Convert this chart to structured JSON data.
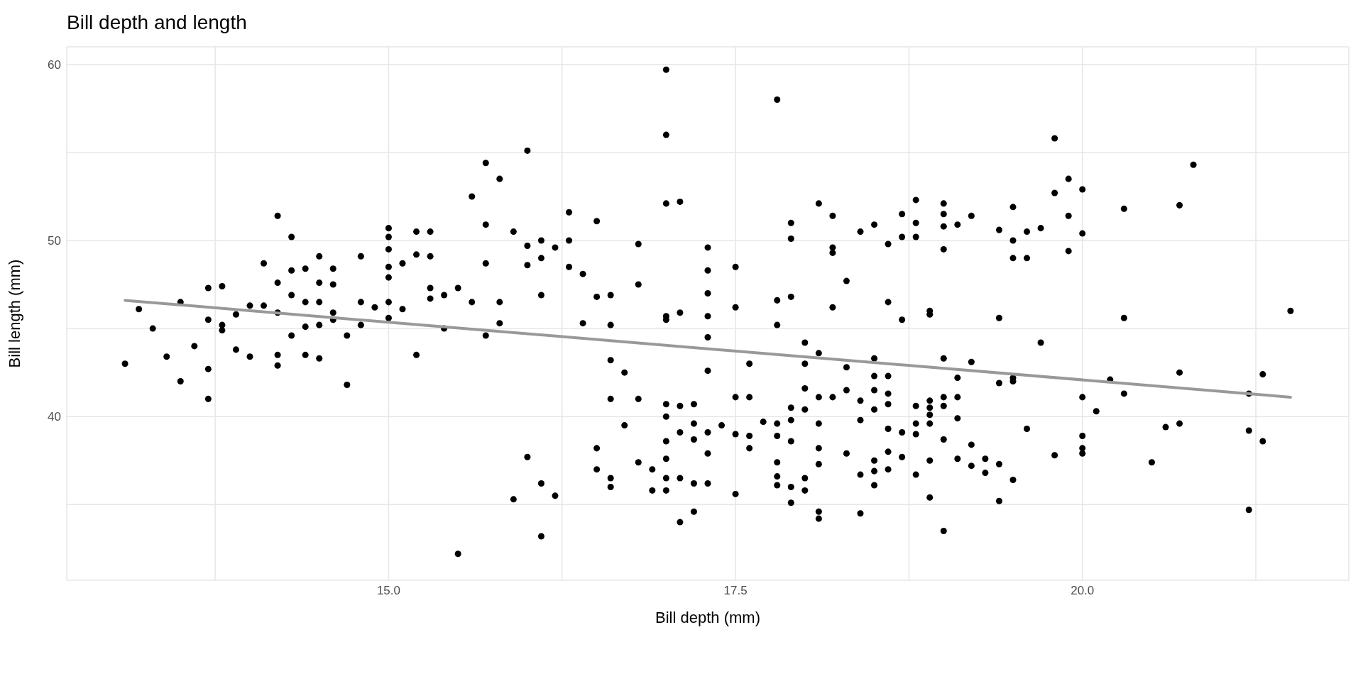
{
  "chart_data": {
    "type": "scatter",
    "title": "Bill depth and length",
    "xlabel": "Bill depth (mm)",
    "ylabel": "Bill length (mm)",
    "xlim": [
      12.68,
      21.92
    ],
    "xticks": [
      {
        "value": 13.75,
        "label": null
      },
      {
        "value": 15,
        "label": "15.0"
      },
      {
        "value": 16.25,
        "label": null
      },
      {
        "value": 17.5,
        "label": "17.5"
      },
      {
        "value": 18.75,
        "label": null
      },
      {
        "value": 20,
        "label": "20.0"
      },
      {
        "value": 21.25,
        "label": null
      }
    ],
    "ylim": [
      30.7,
      61
    ],
    "yticks": [
      {
        "value": 35,
        "label": null
      },
      40,
      {
        "value": 45,
        "label": null
      },
      50,
      {
        "value": 55,
        "label": null
      },
      60
    ],
    "grid": true,
    "marker": "circle",
    "line_style": "solid",
    "series": [
      {
        "color": "#000000",
        "x": [
          13.1,
          13.2,
          13.3,
          13.4,
          13.5,
          13.5,
          13.6,
          13.7,
          13.7,
          13.7,
          13.7,
          13.8,
          13.8,
          13.8,
          13.9,
          13.9,
          14.0,
          14.0,
          14.1,
          14.1,
          14.2,
          14.2,
          14.2,
          14.2,
          14.2,
          14.3,
          14.3,
          14.3,
          14.3,
          14.4,
          14.4,
          14.4,
          14.4,
          14.5,
          14.5,
          14.5,
          14.5,
          14.5,
          14.6,
          14.6,
          14.6,
          14.6,
          14.7,
          14.7,
          14.8,
          14.8,
          14.8,
          14.9,
          15.0,
          15.0,
          15.0,
          15.0,
          15.0,
          15.0,
          15.0,
          15.1,
          15.1,
          15.2,
          15.2,
          15.2,
          15.3,
          15.3,
          15.3,
          15.3,
          15.4,
          15.4,
          15.5,
          15.5,
          15.6,
          15.6,
          15.7,
          15.7,
          15.7,
          15.7,
          15.8,
          15.8,
          15.8,
          15.9,
          15.9,
          16.0,
          16.0,
          16.0,
          16.0,
          16.1,
          16.1,
          16.1,
          16.1,
          16.1,
          16.2,
          16.2,
          16.3,
          16.3,
          16.3,
          16.4,
          16.4,
          16.5,
          16.5,
          16.5,
          16.5,
          16.6,
          16.6,
          16.6,
          16.6,
          16.6,
          16.6,
          16.7,
          16.7,
          16.8,
          16.8,
          16.8,
          16.8,
          16.9,
          16.9,
          17.0,
          17.0,
          17.0,
          17.0,
          17.0,
          17.0,
          17.0,
          17.0,
          17.0,
          17.0,
          17.0,
          17.1,
          17.1,
          17.1,
          17.1,
          17.1,
          17.1,
          17.2,
          17.2,
          17.2,
          17.2,
          17.2,
          17.3,
          17.3,
          17.3,
          17.3,
          17.3,
          17.3,
          17.3,
          17.3,
          17.3,
          17.4,
          17.5,
          17.5,
          17.5,
          17.5,
          17.5,
          17.6,
          17.6,
          17.6,
          17.6,
          17.7,
          17.8,
          17.8,
          17.8,
          17.8,
          17.8,
          17.8,
          17.8,
          17.8,
          17.9,
          17.9,
          17.9,
          17.9,
          17.9,
          17.9,
          17.9,
          17.9,
          18.0,
          18.0,
          18.0,
          18.0,
          18.0,
          18.0,
          18.1,
          18.1,
          18.1,
          18.1,
          18.1,
          18.1,
          18.1,
          18.1,
          18.2,
          18.2,
          18.2,
          18.2,
          18.2,
          18.3,
          18.3,
          18.3,
          18.3,
          18.4,
          18.4,
          18.4,
          18.4,
          18.4,
          18.5,
          18.5,
          18.5,
          18.5,
          18.5,
          18.5,
          18.5,
          18.5,
          18.6,
          18.6,
          18.6,
          18.6,
          18.6,
          18.6,
          18.6,
          18.6,
          18.7,
          18.7,
          18.7,
          18.7,
          18.7,
          18.8,
          18.8,
          18.8,
          18.8,
          18.8,
          18.8,
          18.8,
          18.9,
          18.9,
          18.9,
          18.9,
          18.9,
          18.9,
          18.9,
          18.9,
          19.0,
          19.0,
          19.0,
          19.0,
          19.0,
          19.0,
          19.0,
          19.0,
          19.0,
          19.1,
          19.1,
          19.1,
          19.1,
          19.1,
          19.2,
          19.2,
          19.2,
          19.2,
          19.3,
          19.3,
          19.4,
          19.4,
          19.4,
          19.4,
          19.4,
          19.5,
          19.5,
          19.5,
          19.5,
          19.5,
          19.5,
          19.6,
          19.6,
          19.6,
          19.7,
          19.7,
          19.8,
          19.8,
          19.8,
          19.9,
          19.9,
          19.9,
          20.0,
          20.0,
          20.0,
          20.0,
          20.0,
          20.0,
          20.1,
          20.2,
          20.3,
          20.3,
          20.3,
          20.5,
          20.6,
          20.7,
          20.7,
          20.7,
          20.8,
          21.2,
          21.2,
          21.2,
          21.3,
          21.3,
          21.5
        ],
        "values": [
          43.0,
          46.1,
          45.0,
          43.4,
          46.5,
          42.0,
          44.0,
          47.3,
          45.5,
          42.7,
          41.0,
          47.4,
          45.2,
          44.9,
          45.8,
          43.8,
          46.3,
          43.4,
          48.7,
          46.3,
          51.4,
          47.6,
          45.9,
          43.5,
          42.9,
          50.2,
          48.3,
          46.9,
          44.6,
          48.4,
          46.5,
          45.1,
          43.5,
          49.1,
          47.6,
          46.5,
          45.2,
          43.3,
          48.4,
          47.5,
          45.9,
          45.5,
          44.6,
          41.8,
          49.1,
          46.5,
          45.2,
          46.2,
          49.5,
          50.7,
          50.2,
          48.5,
          47.9,
          46.5,
          45.6,
          48.7,
          46.1,
          49.2,
          50.5,
          43.5,
          49.1,
          50.5,
          46.7,
          47.3,
          45.0,
          46.9,
          47.3,
          32.2,
          52.5,
          46.5,
          54.4,
          50.9,
          48.7,
          44.6,
          53.5,
          46.5,
          45.3,
          50.5,
          35.3,
          55.1,
          49.7,
          48.6,
          37.7,
          50.0,
          49.0,
          46.9,
          36.2,
          33.2,
          49.6,
          35.5,
          51.6,
          50.0,
          48.5,
          48.1,
          45.3,
          51.1,
          46.8,
          38.2,
          37.0,
          46.9,
          45.2,
          43.2,
          41.0,
          36.5,
          36.0,
          42.5,
          39.5,
          49.8,
          47.5,
          41.0,
          37.4,
          37.0,
          35.8,
          59.7,
          56.0,
          52.1,
          45.7,
          45.5,
          40.7,
          40.0,
          38.6,
          37.6,
          36.5,
          35.8,
          52.2,
          45.9,
          40.6,
          39.1,
          36.5,
          34.0,
          40.7,
          39.6,
          38.7,
          36.2,
          34.6,
          49.6,
          48.3,
          47.0,
          45.7,
          44.5,
          42.6,
          39.1,
          37.9,
          36.2,
          39.5,
          48.5,
          46.2,
          41.1,
          39.0,
          35.6,
          43.0,
          41.1,
          38.9,
          38.2,
          39.7,
          58.0,
          46.6,
          45.2,
          39.6,
          38.9,
          37.4,
          36.6,
          36.1,
          51.0,
          50.1,
          46.8,
          40.5,
          39.8,
          38.6,
          36.0,
          35.1,
          44.2,
          43.0,
          41.6,
          40.4,
          36.5,
          35.8,
          52.1,
          43.6,
          41.1,
          39.6,
          38.2,
          37.3,
          34.6,
          34.2,
          51.4,
          49.6,
          49.3,
          46.2,
          41.1,
          47.7,
          42.8,
          41.5,
          37.9,
          50.5,
          40.9,
          39.8,
          36.7,
          34.5,
          50.9,
          43.3,
          42.3,
          41.5,
          40.4,
          37.5,
          36.1,
          36.9,
          49.8,
          46.5,
          42.3,
          41.3,
          40.7,
          39.3,
          38.0,
          37.0,
          51.5,
          50.2,
          45.5,
          39.1,
          37.7,
          52.3,
          51.0,
          50.2,
          40.6,
          39.6,
          39.0,
          36.7,
          46.0,
          45.8,
          40.9,
          40.5,
          40.1,
          39.6,
          37.5,
          35.4,
          52.1,
          51.5,
          50.8,
          49.5,
          43.3,
          41.1,
          40.6,
          38.7,
          33.5,
          50.9,
          42.2,
          41.1,
          39.9,
          37.6,
          51.4,
          43.1,
          38.4,
          37.2,
          37.6,
          36.8,
          50.6,
          45.6,
          41.9,
          37.3,
          35.2,
          50.0,
          49.0,
          51.9,
          42.2,
          42.0,
          36.4,
          50.5,
          49.0,
          39.3,
          50.7,
          44.2,
          55.8,
          52.7,
          37.8,
          53.5,
          51.4,
          49.4,
          52.9,
          50.4,
          41.1,
          38.9,
          38.2,
          37.9,
          40.3,
          42.1,
          51.8,
          45.6,
          41.3,
          37.4,
          39.4,
          52.0,
          42.5,
          39.6,
          54.3,
          41.3,
          39.2,
          34.7,
          42.4,
          38.6,
          46.0
        ]
      },
      {
        "type": "line",
        "marker": "none",
        "color": "#999999",
        "x": [
          13.1,
          21.5
        ],
        "values": [
          46.6,
          41.1
        ]
      }
    ]
  }
}
